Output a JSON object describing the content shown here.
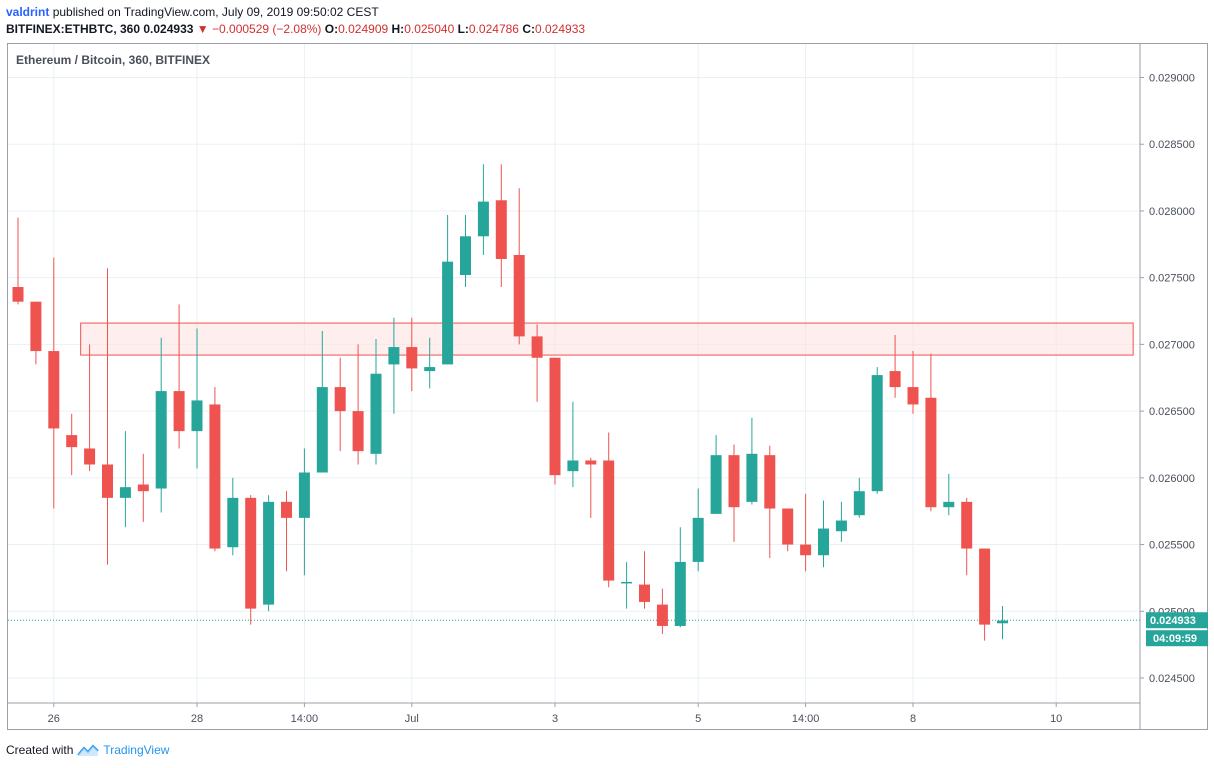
{
  "header": {
    "author": "valdrint",
    "published_text": "published on TradingView.com, July 09, 2019 09:50:02 CEST",
    "symbol_line": {
      "symbol": "BITFINEX:ETHBTC, 360",
      "last": "0.024933",
      "arrow": "▼",
      "change": "−0.000529 (−2.08%)",
      "open_label": "O:",
      "open": "0.024909",
      "high_label": "H:",
      "high": "0.025040",
      "low_label": "L:",
      "low": "0.024786",
      "close_label": "C:",
      "close": "0.024933"
    }
  },
  "footer": {
    "created_with": "Created with",
    "brand": "TradingView"
  },
  "colors": {
    "up": "#26a69a",
    "down": "#ef5350",
    "zone_fill": "#fde2e1",
    "zone_stroke": "#ef5350",
    "grid": "#e9f1f5",
    "price_label": "#26a69a"
  },
  "chart_data": {
    "type": "candlestick",
    "title": "Ethereum / Bitcoin, 360, BITFINEX",
    "ylim": [
      0.02425,
      0.0292
    ],
    "y_ticks": [
      "0.024500",
      "0.025000",
      "0.025500",
      "0.026000",
      "0.026500",
      "0.027000",
      "0.027500",
      "0.028000",
      "0.028500",
      "0.029000"
    ],
    "y_tick_values": [
      0.0245,
      0.025,
      0.0255,
      0.026,
      0.0265,
      0.027,
      0.0275,
      0.028,
      0.0285,
      0.029
    ],
    "x_ticks": [
      {
        "label": "26",
        "i": 2
      },
      {
        "label": "28",
        "i": 10
      },
      {
        "label": "14:00",
        "i": 16
      },
      {
        "label": "Jul",
        "i": 22
      },
      {
        "label": "3",
        "i": 30
      },
      {
        "label": "5",
        "i": 38
      },
      {
        "label": "14:00",
        "i": 44
      },
      {
        "label": "8",
        "i": 50
      },
      {
        "label": "10",
        "i": 58
      }
    ],
    "current_price": {
      "value": 0.024933,
      "label": "0.024933",
      "countdown": "04:09:59"
    },
    "resistance_zone": {
      "from_index": 3.5,
      "to_index": 62.3,
      "low": 0.02692,
      "high": 0.02716
    },
    "candles": [
      {
        "o": 0.02743,
        "h": 0.02795,
        "l": 0.0273,
        "c": 0.02732
      },
      {
        "o": 0.02732,
        "h": 0.02732,
        "l": 0.02685,
        "c": 0.02695
      },
      {
        "o": 0.02695,
        "h": 0.02765,
        "l": 0.02577,
        "c": 0.02637
      },
      {
        "o": 0.02632,
        "h": 0.02648,
        "l": 0.02602,
        "c": 0.02623
      },
      {
        "o": 0.02622,
        "h": 0.027,
        "l": 0.02605,
        "c": 0.0261
      },
      {
        "o": 0.0261,
        "h": 0.02757,
        "l": 0.02535,
        "c": 0.02585
      },
      {
        "o": 0.02585,
        "h": 0.02635,
        "l": 0.02563,
        "c": 0.02593
      },
      {
        "o": 0.02595,
        "h": 0.02618,
        "l": 0.02567,
        "c": 0.0259
      },
      {
        "o": 0.02592,
        "h": 0.02705,
        "l": 0.02574,
        "c": 0.02665
      },
      {
        "o": 0.02665,
        "h": 0.0273,
        "l": 0.02622,
        "c": 0.02635
      },
      {
        "o": 0.02635,
        "h": 0.02712,
        "l": 0.02607,
        "c": 0.02658
      },
      {
        "o": 0.02655,
        "h": 0.02668,
        "l": 0.02545,
        "c": 0.02547
      },
      {
        "o": 0.02548,
        "h": 0.026,
        "l": 0.02542,
        "c": 0.02585
      },
      {
        "o": 0.02585,
        "h": 0.02587,
        "l": 0.0249,
        "c": 0.02502
      },
      {
        "o": 0.02505,
        "h": 0.02587,
        "l": 0.025,
        "c": 0.02582
      },
      {
        "o": 0.02582,
        "h": 0.0259,
        "l": 0.0253,
        "c": 0.0257
      },
      {
        "o": 0.0257,
        "h": 0.02622,
        "l": 0.02527,
        "c": 0.02604
      },
      {
        "o": 0.02604,
        "h": 0.0271,
        "l": 0.02604,
        "c": 0.02668
      },
      {
        "o": 0.02668,
        "h": 0.0269,
        "l": 0.0262,
        "c": 0.0265
      },
      {
        "o": 0.0265,
        "h": 0.027,
        "l": 0.0261,
        "c": 0.0262
      },
      {
        "o": 0.02618,
        "h": 0.02704,
        "l": 0.0261,
        "c": 0.02678
      },
      {
        "o": 0.02685,
        "h": 0.0272,
        "l": 0.02648,
        "c": 0.02698
      },
      {
        "o": 0.02698,
        "h": 0.0272,
        "l": 0.02665,
        "c": 0.02682
      },
      {
        "o": 0.0268,
        "h": 0.02705,
        "l": 0.02667,
        "c": 0.02683
      },
      {
        "o": 0.02685,
        "h": 0.02797,
        "l": 0.02685,
        "c": 0.02762
      },
      {
        "o": 0.02752,
        "h": 0.02797,
        "l": 0.02743,
        "c": 0.02781
      },
      {
        "o": 0.02781,
        "h": 0.02835,
        "l": 0.02767,
        "c": 0.02807
      },
      {
        "o": 0.02808,
        "h": 0.02835,
        "l": 0.02743,
        "c": 0.02764
      },
      {
        "o": 0.02767,
        "h": 0.02817,
        "l": 0.027,
        "c": 0.02706
      },
      {
        "o": 0.02706,
        "h": 0.02715,
        "l": 0.02657,
        "c": 0.0269
      },
      {
        "o": 0.0269,
        "h": 0.0269,
        "l": 0.02595,
        "c": 0.02602
      },
      {
        "o": 0.02605,
        "h": 0.02657,
        "l": 0.02593,
        "c": 0.02613
      },
      {
        "o": 0.02613,
        "h": 0.02615,
        "l": 0.0257,
        "c": 0.0261
      },
      {
        "o": 0.02613,
        "h": 0.02634,
        "l": 0.02518,
        "c": 0.02523
      },
      {
        "o": 0.02522,
        "h": 0.02537,
        "l": 0.02502,
        "c": 0.02522
      },
      {
        "o": 0.0252,
        "h": 0.02545,
        "l": 0.02502,
        "c": 0.02507
      },
      {
        "o": 0.02505,
        "h": 0.02517,
        "l": 0.02483,
        "c": 0.02489
      },
      {
        "o": 0.02489,
        "h": 0.02563,
        "l": 0.02488,
        "c": 0.02537
      },
      {
        "o": 0.02537,
        "h": 0.02592,
        "l": 0.0253,
        "c": 0.0257
      },
      {
        "o": 0.02573,
        "h": 0.02632,
        "l": 0.02573,
        "c": 0.02617
      },
      {
        "o": 0.02617,
        "h": 0.02625,
        "l": 0.02552,
        "c": 0.02578
      },
      {
        "o": 0.02582,
        "h": 0.02645,
        "l": 0.0258,
        "c": 0.02618
      },
      {
        "o": 0.02617,
        "h": 0.02624,
        "l": 0.0254,
        "c": 0.02577
      },
      {
        "o": 0.02577,
        "h": 0.02577,
        "l": 0.02545,
        "c": 0.0255
      },
      {
        "o": 0.0255,
        "h": 0.02588,
        "l": 0.0253,
        "c": 0.02542
      },
      {
        "o": 0.02542,
        "h": 0.02583,
        "l": 0.02533,
        "c": 0.02562
      },
      {
        "o": 0.0256,
        "h": 0.02582,
        "l": 0.02552,
        "c": 0.02568
      },
      {
        "o": 0.02572,
        "h": 0.026,
        "l": 0.0257,
        "c": 0.0259
      },
      {
        "o": 0.0259,
        "h": 0.02683,
        "l": 0.02588,
        "c": 0.02677
      },
      {
        "o": 0.0268,
        "h": 0.02707,
        "l": 0.0266,
        "c": 0.02668
      },
      {
        "o": 0.02668,
        "h": 0.02695,
        "l": 0.02648,
        "c": 0.02655
      },
      {
        "o": 0.0266,
        "h": 0.02693,
        "l": 0.02575,
        "c": 0.02578
      },
      {
        "o": 0.02578,
        "h": 0.02603,
        "l": 0.02572,
        "c": 0.02582
      },
      {
        "o": 0.02582,
        "h": 0.02585,
        "l": 0.02527,
        "c": 0.02547
      },
      {
        "o": 0.02547,
        "h": 0.02547,
        "l": 0.02478,
        "c": 0.0249
      },
      {
        "o": 0.02491,
        "h": 0.02504,
        "l": 0.02479,
        "c": 0.02493
      }
    ]
  }
}
